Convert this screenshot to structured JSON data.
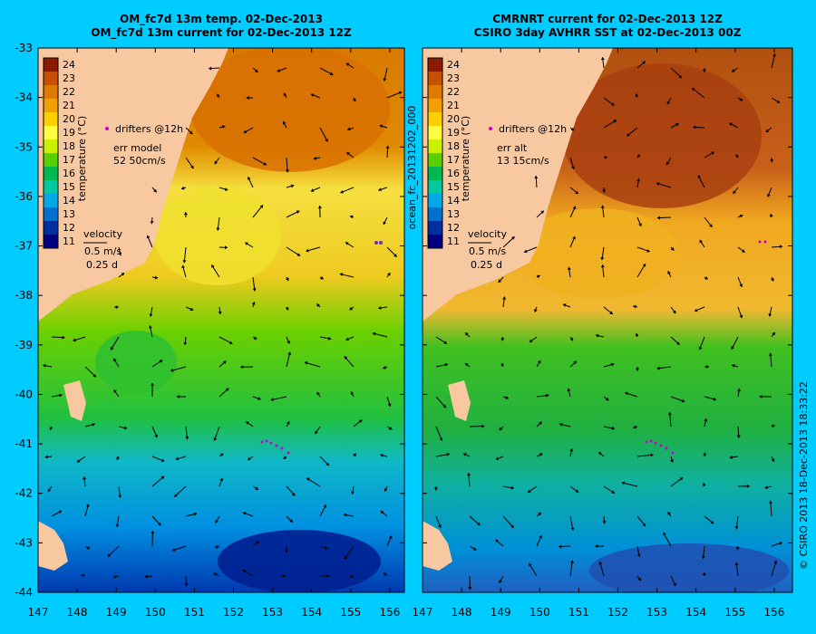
{
  "left_panel": {
    "title_line1": "OM_fc7d 13m temp. 02-Dec-2013",
    "title_line2": "OM_fc7d 13m current for 02-Dec-2013 12Z",
    "drifters_label": "drifters @12h",
    "err_label": "err model",
    "err_values": "52 50cm/s",
    "velocity_label": "velocity",
    "velocity_scale": "0.5 m/s",
    "velocity_time": "0.25 d"
  },
  "right_panel": {
    "title_line1": "CMRNRT current for 02-Dec-2013 12Z",
    "title_line2": "CSIRO 3day AVHRR SST at 02-Dec-2013 00Z",
    "side_label": "ocean_fc_20131202_000",
    "drifters_label": "drifters @12h",
    "err_label": "err alt",
    "err_values": "13 15cm/s",
    "velocity_label": "velocity",
    "velocity_scale": "0.5 m/s",
    "velocity_time": "0.25 d"
  },
  "colorbar": {
    "label": "temperature (°C)",
    "ticks": [
      "24",
      "23",
      "22",
      "21",
      "20",
      "19",
      "18",
      "17",
      "16",
      "15",
      "14",
      "13",
      "12",
      "11"
    ],
    "colors": [
      "#8b1a00",
      "#c94f00",
      "#e07a00",
      "#f2a000",
      "#ffd000",
      "#ffff40",
      "#c8f000",
      "#5ad000",
      "#00b850",
      "#00c8a0",
      "#00a8e8",
      "#0070d0",
      "#0030a0",
      "#000080"
    ]
  },
  "axes": {
    "lat_ticks": [
      "-33",
      "-34",
      "-35",
      "-36",
      "-37",
      "-38",
      "-39",
      "-40",
      "-41",
      "-42",
      "-43",
      "-44"
    ],
    "lon_ticks": [
      "147",
      "148",
      "149",
      "150",
      "151",
      "152",
      "153",
      "154",
      "155",
      "156"
    ]
  },
  "credit": "© CSIRO 2013   18-Dec-2013 18:33:22",
  "colors": {
    "background": "#00ccff",
    "land": "#f8c8a0",
    "drifter": "#cc00cc"
  }
}
